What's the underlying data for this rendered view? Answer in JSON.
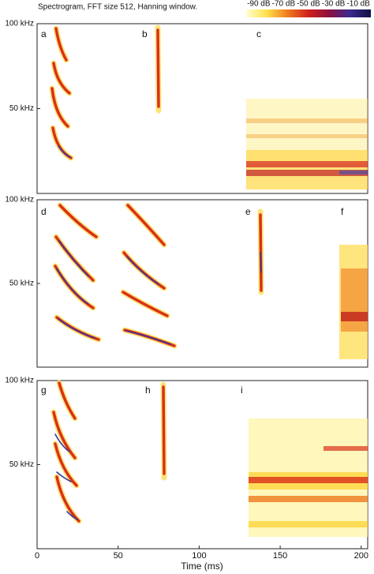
{
  "chart_data": {
    "type": "spectrogram",
    "title": "Spectrogram, FFT size 512, Hanning window.",
    "colorbar": {
      "clim": [
        -100,
        0
      ],
      "ticks": [
        {
          "value": -90,
          "label": "-90 dB"
        },
        {
          "value": -70,
          "label": "-70 dB"
        },
        {
          "value": -50,
          "label": "-50 dB"
        },
        {
          "value": -30,
          "label": "-30 dB"
        },
        {
          "value": -10,
          "label": "-10 dB"
        }
      ],
      "colors": [
        "#ffffd0",
        "#ffe04a",
        "#ef7a1e",
        "#d0201c",
        "#8a1040",
        "#3a2a90",
        "#101040"
      ]
    },
    "panels": [
      {
        "letters": [
          "a",
          "b",
          "c"
        ]
      },
      {
        "letters": [
          "d",
          "e",
          "f"
        ]
      },
      {
        "letters": [
          "g",
          "h",
          "i"
        ]
      }
    ],
    "ylim": [
      0,
      100
    ],
    "yticks": [
      {
        "value": 100,
        "label": "100 kHz"
      },
      {
        "value": 50,
        "label": "50 kHz"
      }
    ],
    "xlim": [
      0,
      204
    ],
    "xticks": [
      0,
      50,
      100,
      150,
      200
    ],
    "xlabel": "Time (ms)"
  }
}
